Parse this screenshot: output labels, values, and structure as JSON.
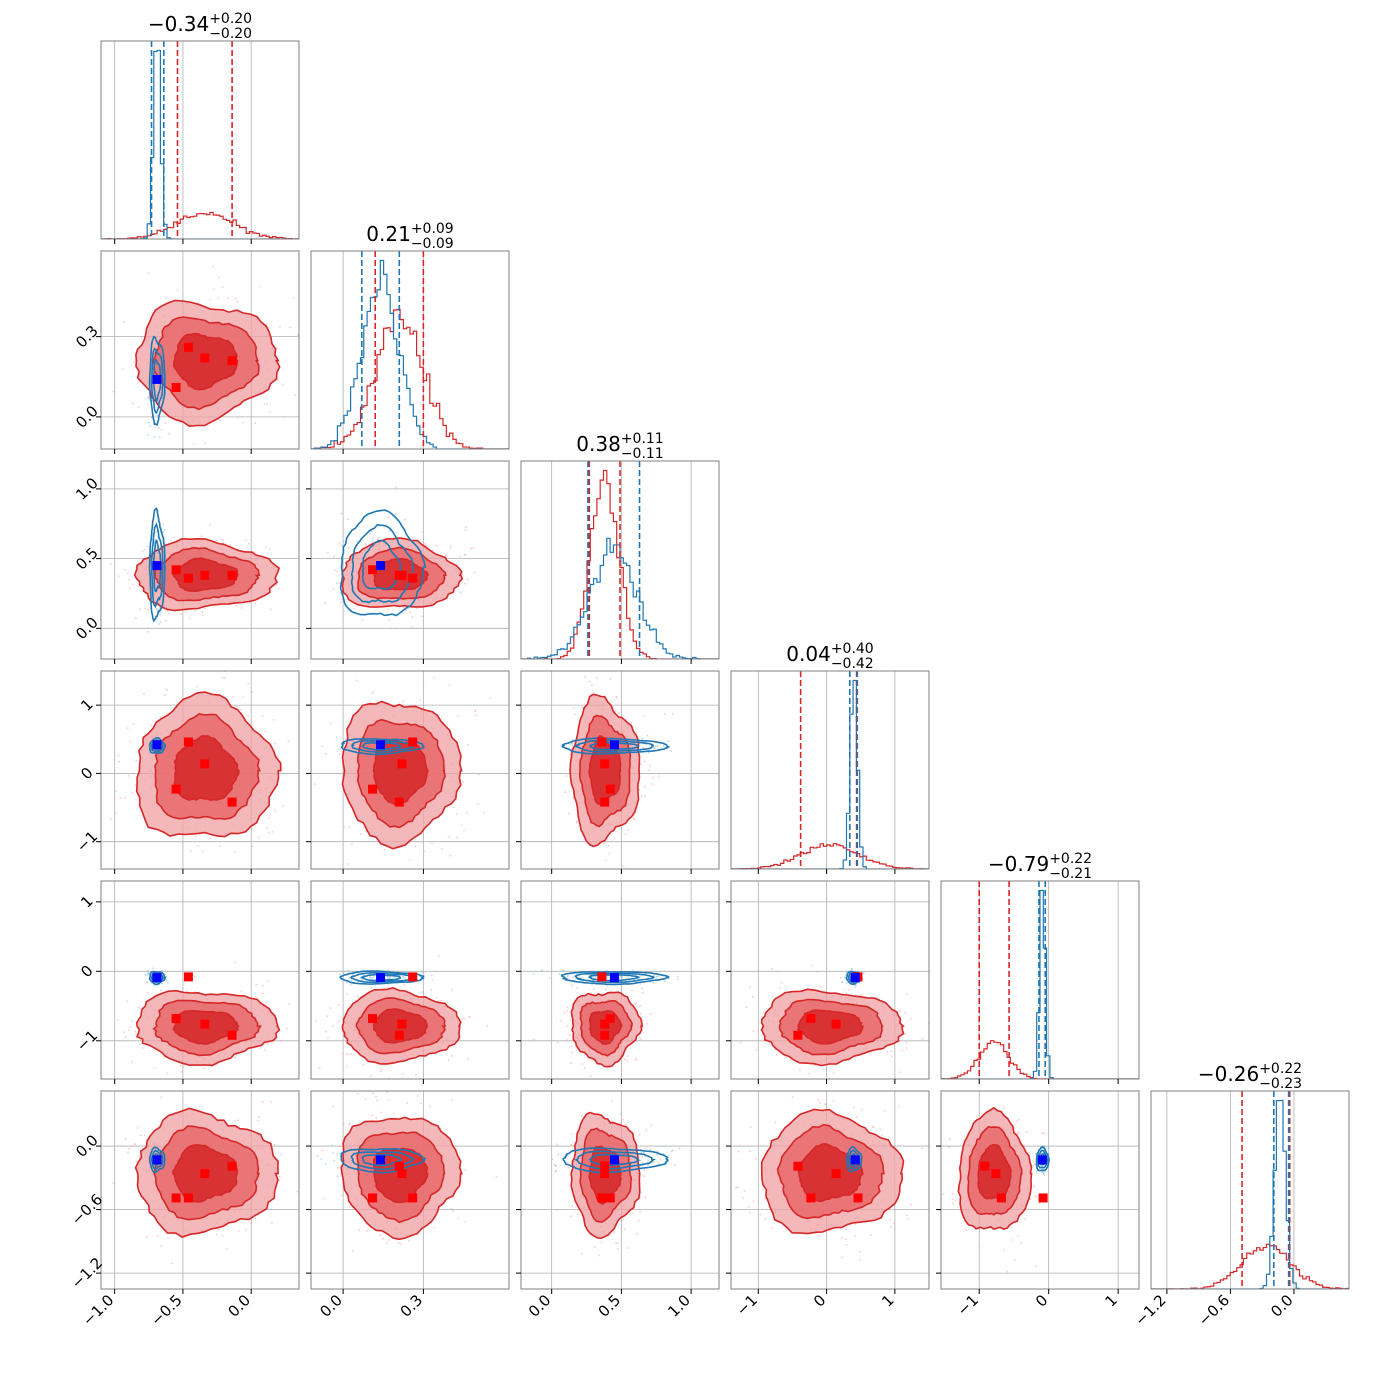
{
  "chart_data": {
    "type": "corner",
    "n_params": 6,
    "colors": {
      "primary": "#d62728",
      "secondary": "#1f77b4",
      "primary_marker": "#ff0000",
      "secondary_marker": "#0000ff",
      "grid": "#b0b0b0",
      "frame": "#808080"
    },
    "grid": true,
    "legend": "none",
    "params": [
      {
        "title_median": "−0.34",
        "title_plus": "+0.20",
        "title_minus": "−0.20",
        "range": [
          -1.1,
          0.35
        ],
        "ticks": [
          -1.0,
          -0.5,
          0.0
        ],
        "tick_labels": [
          "−1.0",
          "−0.5",
          "0.0"
        ],
        "primary": {
          "center": -0.34,
          "sigma": 0.21,
          "quantiles": [
            -0.54,
            -0.14
          ]
        },
        "secondary": {
          "center": -0.69,
          "sigma": 0.025,
          "quantiles": [
            -0.73,
            -0.64
          ]
        }
      },
      {
        "title_median": "0.21",
        "title_plus": "+0.09",
        "title_minus": "−0.09",
        "range": [
          -0.12,
          0.62
        ],
        "ticks": [
          0.0,
          0.3
        ],
        "tick_labels": [
          "0.0",
          "0.3"
        ],
        "primary": {
          "center": 0.21,
          "sigma": 0.09,
          "quantiles": [
            0.12,
            0.3
          ]
        },
        "secondary": {
          "center": 0.14,
          "sigma": 0.07,
          "quantiles": [
            0.07,
            0.21
          ]
        }
      },
      {
        "title_median": "0.38",
        "title_plus": "+0.11",
        "title_minus": "−0.11",
        "range": [
          -0.22,
          1.2
        ],
        "ticks": [
          0.0,
          0.5,
          1.0
        ],
        "tick_labels": [
          "0.0",
          "0.5",
          "1.0"
        ],
        "primary": {
          "center": 0.38,
          "sigma": 0.1,
          "quantiles": [
            0.27,
            0.49
          ]
        },
        "secondary": {
          "center": 0.44,
          "sigma": 0.17,
          "quantiles": [
            0.26,
            0.63
          ]
        }
      },
      {
        "title_median": "0.04",
        "title_plus": "+0.40",
        "title_minus": "−0.42",
        "range": [
          -1.4,
          1.5
        ],
        "ticks": [
          -1,
          0,
          1
        ],
        "tick_labels": [
          "−1",
          "0",
          "1"
        ],
        "primary": {
          "center": 0.04,
          "sigma": 0.42,
          "quantiles": [
            -0.38,
            0.44
          ]
        },
        "secondary": {
          "center": 0.4,
          "sigma": 0.05,
          "quantiles": [
            0.34,
            0.45
          ]
        }
      },
      {
        "title_median": "−0.79",
        "title_plus": "+0.22",
        "title_minus": "−0.21",
        "range": [
          -1.55,
          1.3
        ],
        "ticks": [
          -1,
          0,
          1
        ],
        "tick_labels": [
          "−1",
          "0",
          "1"
        ],
        "primary": {
          "center": -0.79,
          "sigma": 0.21,
          "quantiles": [
            -1.0,
            -0.57
          ]
        },
        "secondary": {
          "center": -0.09,
          "sigma": 0.04,
          "quantiles": [
            -0.14,
            -0.05
          ]
        }
      },
      {
        "title_median": "−0.26",
        "title_plus": "+0.22",
        "title_minus": "−0.23",
        "range": [
          -1.35,
          0.52
        ],
        "ticks": [
          -1.2,
          -0.6,
          0.0
        ],
        "tick_labels": [
          "−1.2",
          "−0.6",
          "0.0"
        ],
        "primary": {
          "center": -0.26,
          "sigma": 0.23,
          "quantiles": [
            -0.49,
            -0.04
          ]
        },
        "secondary": {
          "center": -0.13,
          "sigma": 0.05,
          "quantiles": [
            -0.19,
            -0.05
          ]
        }
      }
    ],
    "primary_markers": [
      [
        -0.55,
        0.11,
        0.42,
        -0.23,
        -0.68,
        -0.49
      ],
      [
        -0.14,
        0.21,
        0.38,
        -0.42,
        -0.92,
        -0.19
      ],
      [
        -0.46,
        0.26,
        0.36,
        0.46,
        -0.08,
        -0.49
      ],
      [
        -0.34,
        0.22,
        0.38,
        0.14,
        -0.76,
        -0.26
      ]
    ],
    "secondary_marker": [
      -0.69,
      0.14,
      0.45,
      0.42,
      -0.09,
      -0.13
    ]
  }
}
